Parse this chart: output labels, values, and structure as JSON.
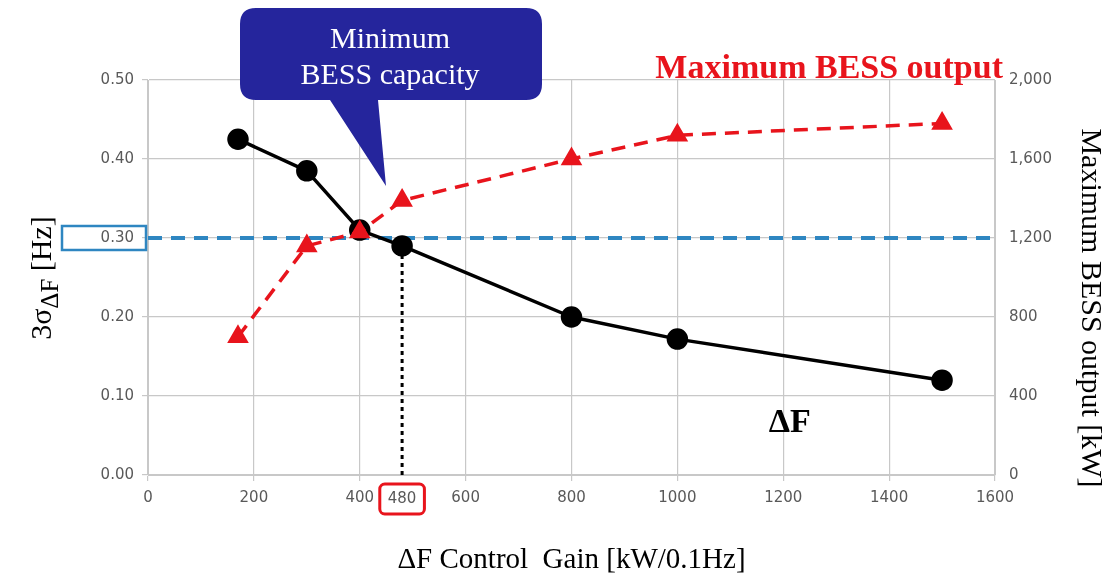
{
  "chart_data": {
    "type": "line",
    "xlabel": "ΔF Control  Gain [kW/0.1Hz]",
    "ylabel": "3σ$_{ΔF}$ [Hz]",
    "y2label": "Maximum BESS output [kW]",
    "series": [
      {
        "name": "ΔF",
        "color": "#000000",
        "x": [
          170,
          300,
          400,
          480,
          800,
          1000,
          1500
        ],
        "values": [
          0.425,
          0.385,
          0.31,
          0.29,
          0.2,
          0.172,
          0.12
        ],
        "marker": "circle",
        "line_style": "solid"
      },
      {
        "name": "Maximum BESS output",
        "color": "#e8141c",
        "axis": "y2",
        "x": [
          170,
          300,
          400,
          480,
          800,
          1000,
          1500
        ],
        "values": [
          700,
          1160,
          1230,
          1390,
          1600,
          1720,
          1780
        ],
        "marker": "triangle",
        "line_style": "dashed"
      }
    ],
    "xlim": [
      0,
      1600
    ],
    "xticks": [
      0,
      200,
      400,
      600,
      800,
      1000,
      1200,
      1400,
      1600
    ],
    "ylim": [
      0,
      0.5
    ],
    "yticks": [
      {
        "value": 0,
        "label": "0.00"
      },
      {
        "value": 0.1,
        "label": "0.10"
      },
      {
        "value": 0.2,
        "label": "0.20"
      },
      {
        "value": 0.3,
        "label": "0.30"
      },
      {
        "value": 0.4,
        "label": "0.40"
      },
      {
        "value": 0.5,
        "label": "0.50"
      }
    ],
    "y2lim": [
      0,
      2000
    ],
    "y2ticks": [
      {
        "value": 0,
        "label": "0"
      },
      {
        "value": 400,
        "label": "400"
      },
      {
        "value": 800,
        "label": "800"
      },
      {
        "value": 1200,
        "label": "1,200"
      },
      {
        "value": 1600,
        "label": "1,600"
      },
      {
        "value": 2000,
        "label": "2,000"
      }
    ],
    "ref_lines": [
      {
        "axis": "y",
        "value": 0.3,
        "color": "#2e86c1",
        "line_style": "dashed"
      },
      {
        "axis": "x",
        "value": 480,
        "label": "480",
        "color": "#000000",
        "line_style": "dotted"
      }
    ],
    "annotations": [
      "Minimum BESS capacity"
    ],
    "grid": true,
    "legend": false
  }
}
